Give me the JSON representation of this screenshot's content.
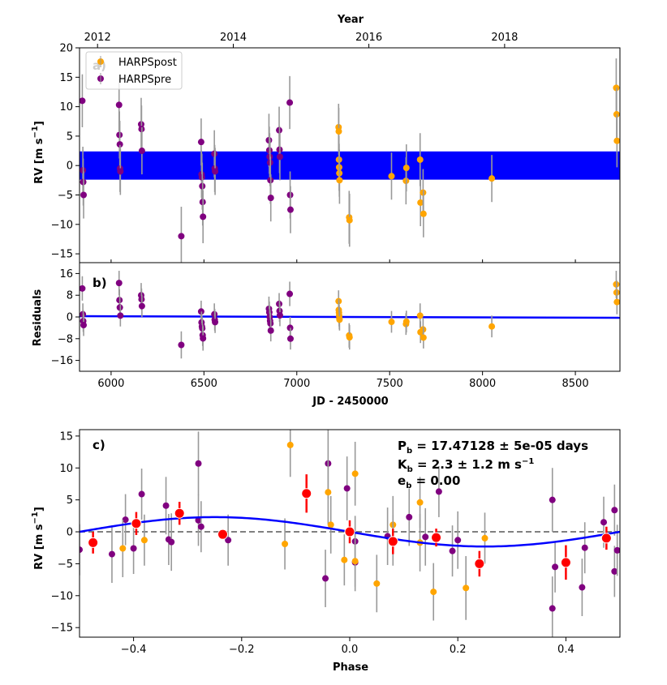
{
  "colors": {
    "post": "#ffa500",
    "pre": "#800080",
    "model": "#0000ff",
    "binned": "#ff0000",
    "errbar": "#999999",
    "zero": "#808080"
  },
  "chart_data": [
    {
      "id": "a",
      "type": "scatter",
      "panel_label": "a)",
      "top_axis_label": "Year",
      "top_ticks": [
        {
          "v": 5927,
          "label": "2012"
        },
        {
          "v": 6658,
          "label": "2014"
        },
        {
          "v": 7388,
          "label": "2016"
        },
        {
          "v": 8119,
          "label": "2018"
        }
      ],
      "xlim": [
        5830,
        8740
      ],
      "ylim": [
        -16.5,
        20
      ],
      "yticks": [
        -15,
        -10,
        -5,
        0,
        5,
        10,
        15,
        20
      ],
      "ylabel": "RV [m s",
      "ylabel_sup": "−1",
      "ylabel_end": "]",
      "legend": [
        {
          "label": "HARPSpost",
          "color_key": "post"
        },
        {
          "label": "HARPSpre",
          "color_key": "pre"
        }
      ],
      "model_band": {
        "center": 0.0,
        "halfwidth": 2.4
      },
      "series": [
        {
          "name": "HARPSpre",
          "color_key": "pre",
          "points": [
            [
              5845,
              11.0,
              4.5
            ],
            [
              5848,
              -0.8,
              4.0
            ],
            [
              5850,
              -2.8,
              4.0
            ],
            [
              5852,
              -5.0,
              4.0
            ],
            [
              6043,
              10.3,
              4.5
            ],
            [
              6045,
              5.2,
              4.0
            ],
            [
              6047,
              3.6,
              4.0
            ],
            [
              6048,
              -0.5,
              4.0
            ],
            [
              6050,
              -1.0,
              4.0
            ],
            [
              6162,
              7.0,
              4.5
            ],
            [
              6164,
              6.2,
              4.0
            ],
            [
              6166,
              2.5,
              4.0
            ],
            [
              6378,
              -12.0,
              5.0
            ],
            [
              6485,
              4.0,
              4.0
            ],
            [
              6487,
              -1.5,
              4.0
            ],
            [
              6489,
              -2.0,
              4.0
            ],
            [
              6491,
              -3.5,
              4.0
            ],
            [
              6493,
              -6.2,
              4.0
            ],
            [
              6495,
              -8.7,
              4.5
            ],
            [
              6556,
              2.0,
              4.0
            ],
            [
              6558,
              -0.5,
              4.0
            ],
            [
              6560,
              -1.0,
              4.0
            ],
            [
              6850,
              4.3,
              4.5
            ],
            [
              6852,
              2.6,
              4.0
            ],
            [
              6854,
              1.5,
              4.0
            ],
            [
              6856,
              0.5,
              4.0
            ],
            [
              6858,
              -2.5,
              4.0
            ],
            [
              6860,
              -5.5,
              4.0
            ],
            [
              6905,
              6.0,
              4.0
            ],
            [
              6907,
              2.7,
              4.0
            ],
            [
              6909,
              1.5,
              4.0
            ],
            [
              6962,
              10.7,
              4.5
            ],
            [
              6964,
              -5.0,
              4.0
            ],
            [
              6966,
              -7.5,
              4.0
            ]
          ]
        },
        {
          "name": "HARPSpost",
          "color_key": "post",
          "points": [
            [
              7225,
              6.5,
              4.0
            ],
            [
              7226,
              5.8,
              4.0
            ],
            [
              7227,
              1.0,
              4.0
            ],
            [
              7228,
              -0.3,
              4.0
            ],
            [
              7229,
              -1.3,
              4.0
            ],
            [
              7230,
              -2.5,
              4.0
            ],
            [
              7282,
              -8.8,
              4.5
            ],
            [
              7284,
              -9.3,
              4.5
            ],
            [
              7510,
              -1.8,
              4.0
            ],
            [
              7588,
              -2.6,
              4.0
            ],
            [
              7590,
              -0.4,
              4.0
            ],
            [
              7664,
              1.0,
              4.5
            ],
            [
              7666,
              -6.3,
              4.0
            ],
            [
              7680,
              -4.6,
              4.0
            ],
            [
              7682,
              -8.2,
              4.0
            ],
            [
              8050,
              -2.2,
              4.0
            ],
            [
              8720,
              13.2,
              5.0
            ],
            [
              8722,
              8.7,
              4.5
            ],
            [
              8724,
              4.2,
              4.5
            ]
          ]
        }
      ]
    },
    {
      "id": "b",
      "type": "scatter",
      "panel_label": "b)",
      "xlim": [
        5830,
        8740
      ],
      "ylim": [
        -20,
        20
      ],
      "yticks": [
        -16,
        -8,
        0,
        8,
        16
      ],
      "xticks": [
        6000,
        6500,
        7000,
        7500,
        8000,
        8500
      ],
      "ylabel": "Residuals",
      "xlabel": "JD - 2450000",
      "model_line": [
        [
          5830,
          0.3
        ],
        [
          8740,
          -0.3
        ]
      ],
      "series": [
        {
          "name": "HARPSpre",
          "color_key": "pre",
          "points": [
            [
              5845,
              10.5,
              4.5
            ],
            [
              5848,
              1.0,
              4.0
            ],
            [
              5850,
              -1.5,
              4.0
            ],
            [
              5852,
              -3.0,
              4.0
            ],
            [
              6043,
              12.5,
              4.5
            ],
            [
              6045,
              6.2,
              4.0
            ],
            [
              6047,
              3.5,
              4.0
            ],
            [
              6050,
              0.5,
              4.0
            ],
            [
              6162,
              8.0,
              4.5
            ],
            [
              6164,
              6.5,
              4.0
            ],
            [
              6166,
              4.0,
              4.0
            ],
            [
              6378,
              -10.3,
              5.0
            ],
            [
              6485,
              2.0,
              4.0
            ],
            [
              6487,
              -2.0,
              4.0
            ],
            [
              6489,
              -3.5,
              4.0
            ],
            [
              6491,
              -4.2,
              4.0
            ],
            [
              6493,
              -6.7,
              4.0
            ],
            [
              6495,
              -7.9,
              4.5
            ],
            [
              6556,
              1.0,
              4.0
            ],
            [
              6558,
              -1.0,
              4.0
            ],
            [
              6560,
              -1.9,
              4.0
            ],
            [
              6850,
              3.0,
              4.5
            ],
            [
              6852,
              1.7,
              4.0
            ],
            [
              6854,
              0.0,
              4.0
            ],
            [
              6856,
              -1.4,
              4.0
            ],
            [
              6858,
              -2.4,
              4.0
            ],
            [
              6860,
              -5.0,
              4.0
            ],
            [
              6905,
              4.8,
              4.0
            ],
            [
              6907,
              2.2,
              4.0
            ],
            [
              6909,
              0.6,
              4.0
            ],
            [
              6962,
              8.5,
              4.5
            ],
            [
              6964,
              -4.0,
              4.0
            ],
            [
              6966,
              -8.0,
              4.0
            ]
          ]
        },
        {
          "name": "HARPSpost",
          "color_key": "post",
          "points": [
            [
              7225,
              5.8,
              4.0
            ],
            [
              7226,
              2.6,
              4.0
            ],
            [
              7227,
              1.6,
              4.0
            ],
            [
              7228,
              0.5,
              4.0
            ],
            [
              7229,
              -0.5,
              4.0
            ],
            [
              7230,
              -1.0,
              4.0
            ],
            [
              7282,
              -6.8,
              4.5
            ],
            [
              7284,
              -7.5,
              4.5
            ],
            [
              7510,
              -1.8,
              4.0
            ],
            [
              7588,
              -2.6,
              4.0
            ],
            [
              7590,
              -1.7,
              4.0
            ],
            [
              7664,
              0.5,
              4.5
            ],
            [
              7666,
              -5.6,
              4.0
            ],
            [
              7680,
              -4.6,
              4.0
            ],
            [
              7682,
              -7.6,
              4.0
            ],
            [
              8050,
              -3.5,
              4.0
            ],
            [
              8720,
              12.0,
              5.0
            ],
            [
              8722,
              9.0,
              4.5
            ],
            [
              8724,
              5.5,
              4.5
            ]
          ]
        }
      ]
    },
    {
      "id": "c",
      "type": "scatter",
      "panel_label": "c)",
      "xlim": [
        -0.5,
        0.5
      ],
      "ylim": [
        -16.5,
        16
      ],
      "xticks": [
        {
          "v": -0.4,
          "label": "−0.4"
        },
        {
          "v": -0.2,
          "label": "−0.2"
        },
        {
          "v": 0.0,
          "label": "0.0"
        },
        {
          "v": 0.2,
          "label": "0.2"
        },
        {
          "v": 0.4,
          "label": "0.4"
        }
      ],
      "yticks": [
        {
          "v": -15,
          "label": "−15"
        },
        {
          "v": -10,
          "label": "−10"
        },
        {
          "v": -5,
          "label": "−5"
        },
        {
          "v": 0,
          "label": "0"
        },
        {
          "v": 5,
          "label": "5"
        },
        {
          "v": 10,
          "label": "10"
        },
        {
          "v": 15,
          "label": "15"
        }
      ],
      "ylabel": "RV [m s",
      "ylabel_sup": "−1",
      "ylabel_end": "]",
      "xlabel": "Phase",
      "params": [
        {
          "main": "P",
          "sub": "b",
          "rest": " = 17.47128 ± 5e-05 days"
        },
        {
          "main": "K",
          "sub": "b",
          "rest": " = 2.3 ± 1.2 m s",
          "sup": "−1"
        },
        {
          "main": "e",
          "sub": "b",
          "rest": " = 0.00"
        }
      ],
      "model": {
        "amplitude": 2.3,
        "phase_peak": -0.25
      },
      "series": [
        {
          "name": "HARPSpre",
          "color_key": "pre",
          "points": [
            [
              -0.5,
              -2.8,
              4.0
            ],
            [
              -0.44,
              -3.5,
              4.5
            ],
            [
              -0.415,
              1.9,
              4.0
            ],
            [
              -0.4,
              -2.6,
              4.0
            ],
            [
              -0.385,
              5.9,
              4.0
            ],
            [
              -0.34,
              4.1,
              4.5
            ],
            [
              -0.335,
              -1.2,
              4.0
            ],
            [
              -0.33,
              -1.6,
              4.5
            ],
            [
              -0.28,
              10.7,
              5.0
            ],
            [
              -0.28,
              1.8,
              4.0
            ],
            [
              -0.275,
              0.8,
              4.0
            ],
            [
              -0.225,
              -1.3,
              4.0
            ],
            [
              -0.04,
              10.7,
              5.5
            ],
            [
              -0.045,
              -7.3,
              4.5
            ],
            [
              -0.005,
              6.8,
              5.0
            ],
            [
              0.01,
              -1.5,
              4.0
            ],
            [
              0.01,
              -4.8,
              4.5
            ],
            [
              0.07,
              -0.7,
              4.5
            ],
            [
              0.11,
              2.3,
              4.5
            ],
            [
              0.14,
              -0.8,
              4.5
            ],
            [
              0.165,
              6.3,
              4.0
            ],
            [
              0.2,
              -1.3,
              4.5
            ],
            [
              0.19,
              -3.0,
              4.0
            ],
            [
              0.375,
              5.0,
              5.0
            ],
            [
              0.375,
              -12.0,
              5.0
            ],
            [
              0.38,
              -5.5,
              4.0
            ],
            [
              0.43,
              -8.7,
              4.5
            ],
            [
              0.435,
              -2.5,
              4.0
            ],
            [
              0.47,
              1.5,
              4.0
            ],
            [
              0.49,
              3.4,
              4.0
            ],
            [
              0.49,
              -6.2,
              4.0
            ],
            [
              0.495,
              -2.9,
              4.0
            ]
          ]
        },
        {
          "name": "HARPSpost",
          "color_key": "post",
          "points": [
            [
              -0.42,
              -2.6,
              4.5
            ],
            [
              -0.38,
              -1.3,
              4.0
            ],
            [
              -0.11,
              13.6,
              5.0
            ],
            [
              -0.12,
              -1.9,
              4.0
            ],
            [
              -0.04,
              6.2,
              5.0
            ],
            [
              -0.035,
              1.1,
              4.5
            ],
            [
              0.01,
              9.1,
              5.0
            ],
            [
              0.01,
              -4.6,
              4.0
            ],
            [
              -0.01,
              -4.4,
              4.0
            ],
            [
              0.05,
              -8.1,
              4.5
            ],
            [
              0.08,
              1.1,
              4.5
            ],
            [
              0.08,
              -1.3,
              4.0
            ],
            [
              0.13,
              4.6,
              4.0
            ],
            [
              0.13,
              -1.7,
              4.5
            ],
            [
              0.155,
              -9.4,
              4.5
            ],
            [
              0.215,
              -8.8,
              5.0
            ],
            [
              0.25,
              -1.0,
              4.0
            ]
          ]
        }
      ],
      "binned": [
        [
          -0.475,
          -1.7,
          1.7
        ],
        [
          -0.395,
          1.3,
          1.8
        ],
        [
          -0.315,
          2.9,
          1.8
        ],
        [
          -0.235,
          -0.4,
          0.4
        ],
        [
          -0.08,
          6.0,
          3.0
        ],
        [
          0.0,
          0.0,
          1.8
        ],
        [
          0.08,
          -1.5,
          2.0
        ],
        [
          0.16,
          -0.9,
          1.4
        ],
        [
          0.24,
          -5.0,
          2.0
        ],
        [
          0.4,
          -4.8,
          2.7
        ],
        [
          0.475,
          -1.0,
          1.8
        ]
      ]
    }
  ]
}
